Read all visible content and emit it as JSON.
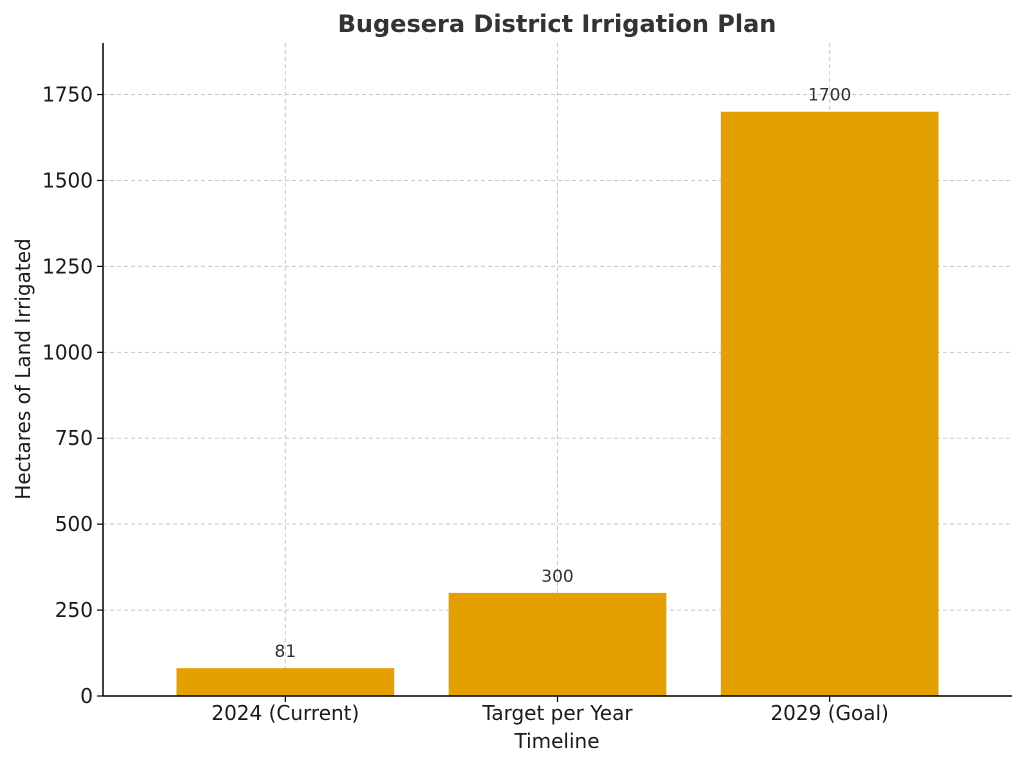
{
  "chart_data": {
    "type": "bar",
    "title": "Bugesera District Irrigation Plan",
    "xlabel": "Timeline",
    "ylabel": "Hectares of Land Irrigated",
    "categories": [
      "2024 (Current)",
      "Target per Year",
      "2029 (Goal)"
    ],
    "values": [
      81,
      300,
      1700
    ],
    "data_labels": [
      "81",
      "300",
      "1700"
    ],
    "ylim": [
      0,
      1900
    ],
    "yticks": [
      0,
      250,
      500,
      750,
      1000,
      1250,
      1500,
      1750
    ],
    "ytick_labels": [
      "0",
      "250",
      "500",
      "750",
      "1000",
      "1250",
      "1500",
      "1750"
    ],
    "grid": true,
    "bar_color": "#E3A000",
    "legend": null
  }
}
